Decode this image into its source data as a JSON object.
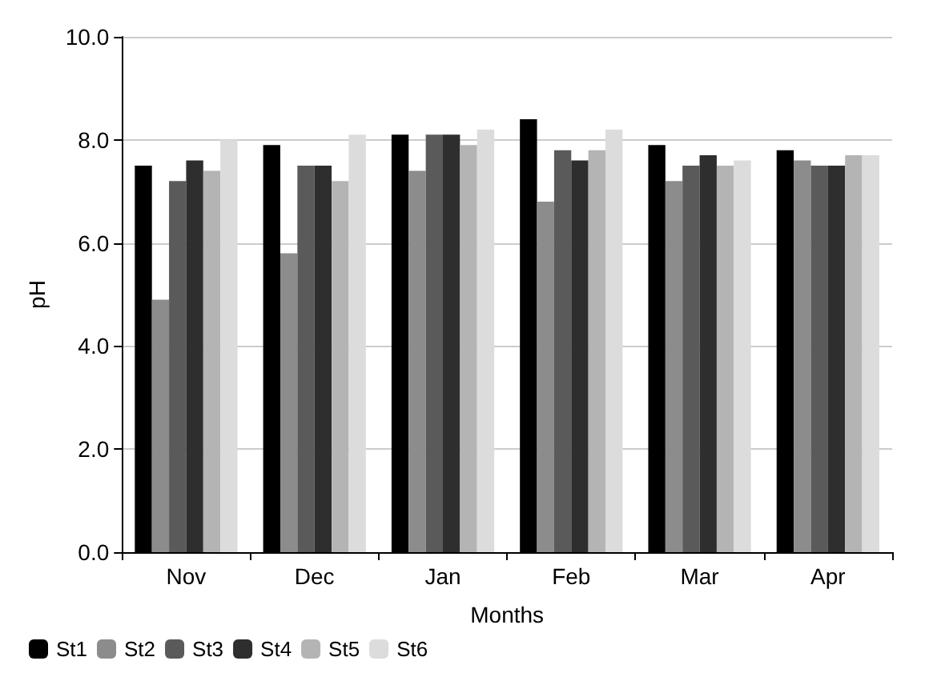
{
  "chart_data": {
    "type": "bar",
    "xlabel": "Months",
    "ylabel": "pH",
    "categories": [
      "Nov",
      "Dec",
      "Jan",
      "Feb",
      "Mar",
      "Apr"
    ],
    "series": [
      {
        "name": "St1",
        "color": "#000000",
        "values": [
          7.5,
          7.9,
          8.1,
          8.4,
          7.9,
          7.8
        ]
      },
      {
        "name": "St2",
        "color": "#8c8c8c",
        "values": [
          4.9,
          5.8,
          7.4,
          6.8,
          7.2,
          7.6
        ]
      },
      {
        "name": "St3",
        "color": "#5a5a5a",
        "values": [
          7.2,
          7.5,
          8.1,
          7.8,
          7.5,
          7.5
        ]
      },
      {
        "name": "St4",
        "color": "#2e2e2e",
        "values": [
          7.6,
          7.5,
          8.1,
          7.6,
          7.7,
          7.5
        ]
      },
      {
        "name": "St5",
        "color": "#b4b4b4",
        "values": [
          7.4,
          7.2,
          7.9,
          7.8,
          7.5,
          7.7
        ]
      },
      {
        "name": "St6",
        "color": "#dcdcdc",
        "values": [
          8.0,
          8.1,
          8.2,
          8.2,
          7.6,
          7.7
        ]
      }
    ],
    "ylim": [
      0,
      10
    ],
    "yticks": [
      {
        "value": 0,
        "label": "0.0"
      },
      {
        "value": 2,
        "label": "2.0"
      },
      {
        "value": 4,
        "label": "4.0"
      },
      {
        "value": 6,
        "label": "6.0"
      },
      {
        "value": 8,
        "label": "8.0"
      },
      {
        "value": 10,
        "label": "10.0"
      }
    ],
    "grid": "y",
    "legend": "bottom left"
  }
}
